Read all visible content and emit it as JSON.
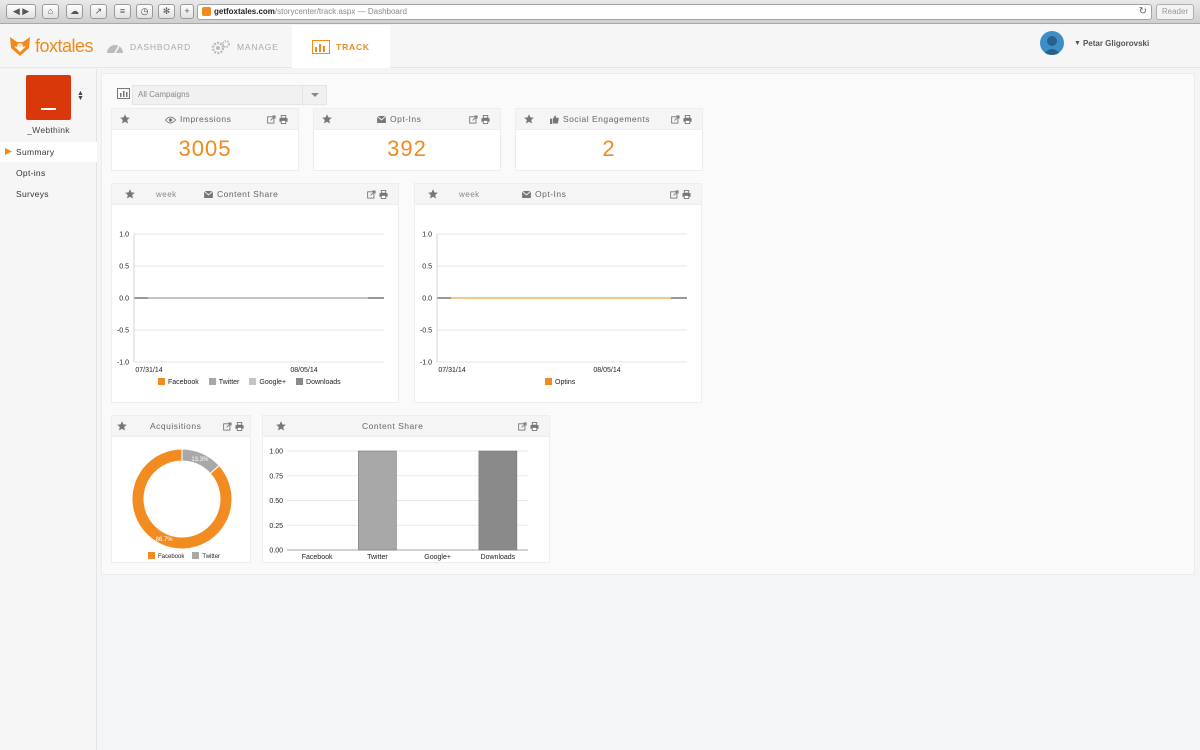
{
  "browser": {
    "url_host": "getfoxtales.com",
    "url_path": "/storycenter/track.aspx",
    "page_title": " — Dashboard",
    "reader_label": "Reader"
  },
  "app": {
    "logo_text": "foxtales",
    "nav": {
      "dashboard": "DASHBOARD",
      "manage": "MANAGE",
      "track": "TRACK"
    },
    "user_name": "Petar Gligorovski"
  },
  "sidebar": {
    "brand_name": "_Webthink",
    "items": [
      {
        "label": "Summary",
        "active": true
      },
      {
        "label": "Opt-ins",
        "active": false
      },
      {
        "label": "Surveys",
        "active": false
      }
    ]
  },
  "campaign_select": {
    "value": "All Campaigns"
  },
  "stats": [
    {
      "title": "Impressions",
      "icon": "eye-icon",
      "value": "3005"
    },
    {
      "title": "Opt-Ins",
      "icon": "envelope-icon",
      "value": "392"
    },
    {
      "title": "Social Engagements",
      "icon": "thumbs-up-icon",
      "value": "2"
    }
  ],
  "colors": {
    "accent": "#f08a1c",
    "facebook": "#f28c21",
    "twitter": "#a8a8a8",
    "google": "#c4c4c4",
    "downloads": "#8a8a8a"
  },
  "chart_data": [
    {
      "id": "content-share-line",
      "type": "line",
      "title": "Content Share",
      "period": "week",
      "x": [
        "07/31/14",
        "08/05/14"
      ],
      "ylim": [
        -1.0,
        1.0
      ],
      "yticks": [
        "1.0",
        "0.5",
        "0.0",
        "-0.5",
        "-1.0"
      ],
      "grid": true,
      "legend_position": "bottom",
      "series": [
        {
          "name": "Facebook",
          "values": [
            0,
            0
          ]
        },
        {
          "name": "Twitter",
          "values": [
            0,
            0
          ]
        },
        {
          "name": "Google+",
          "values": [
            0,
            0
          ]
        },
        {
          "name": "Downloads",
          "values": [
            0,
            0
          ]
        }
      ]
    },
    {
      "id": "optins-line",
      "type": "line",
      "title": "Opt-Ins",
      "period": "week",
      "x": [
        "07/31/14",
        "08/05/14"
      ],
      "ylim": [
        -1.0,
        1.0
      ],
      "yticks": [
        "1.0",
        "0.5",
        "0.0",
        "-0.5",
        "-1.0"
      ],
      "grid": true,
      "legend_position": "bottom",
      "series": [
        {
          "name": "Optins",
          "values": [
            0,
            0
          ]
        }
      ]
    },
    {
      "id": "acquisitions-pie",
      "type": "pie",
      "title": "Acquisitions",
      "legend_position": "bottom",
      "slices": [
        {
          "name": "Facebook",
          "value": 86.7,
          "label": "86.7%"
        },
        {
          "name": "Twitter",
          "value": 13.3,
          "label": "13.3%"
        }
      ]
    },
    {
      "id": "content-share-bar",
      "type": "bar",
      "title": "Content Share",
      "categories": [
        "Facebook",
        "Twitter",
        "Google+",
        "Downloads"
      ],
      "values": [
        0,
        1,
        0,
        1
      ],
      "ylim": [
        0,
        1
      ],
      "yticks": [
        "1.00",
        "0.75",
        "0.50",
        "0.25",
        "0.00"
      ]
    }
  ]
}
